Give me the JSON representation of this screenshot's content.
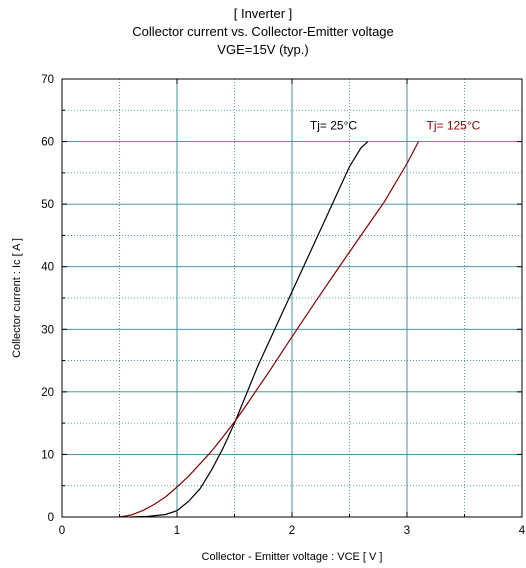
{
  "chart_data": {
    "type": "line",
    "title_lines": [
      "[ Inverter ]",
      "Collector current  vs.  Collector-Emitter voltage",
      "VGE=15V  (typ.)"
    ],
    "xlabel": "Collector - Emitter voltage  :  VCE  [ V ]",
    "ylabel": "Collector current  :  Ic  [ A ]",
    "xlim": [
      0,
      4
    ],
    "ylim": [
      0,
      70
    ],
    "x_ticks": [
      "0",
      "1",
      "2",
      "3",
      "4"
    ],
    "y_ticks": [
      "0",
      "10",
      "20",
      "30",
      "40",
      "50",
      "60",
      "70"
    ],
    "grid": true,
    "series": [
      {
        "name": "Tj= 25°C",
        "color": "#000000",
        "points": [
          [
            0.6,
            0
          ],
          [
            0.75,
            0.1
          ],
          [
            0.9,
            0.4
          ],
          [
            1.0,
            1.0
          ],
          [
            1.1,
            2.5
          ],
          [
            1.2,
            4.5
          ],
          [
            1.3,
            7.5
          ],
          [
            1.4,
            11
          ],
          [
            1.5,
            15
          ],
          [
            1.6,
            19.5
          ],
          [
            1.7,
            24
          ],
          [
            1.8,
            28
          ],
          [
            1.9,
            32
          ],
          [
            2.0,
            36
          ],
          [
            2.1,
            40
          ],
          [
            2.2,
            44
          ],
          [
            2.3,
            48
          ],
          [
            2.4,
            52
          ],
          [
            2.5,
            56
          ],
          [
            2.6,
            59
          ],
          [
            2.66,
            60
          ]
        ]
      },
      {
        "name": "Tj= 125°C",
        "color": "#8b0000",
        "points": [
          [
            0.5,
            0
          ],
          [
            0.6,
            0.3
          ],
          [
            0.7,
            1.0
          ],
          [
            0.8,
            2.0
          ],
          [
            0.9,
            3.2
          ],
          [
            1.0,
            4.8
          ],
          [
            1.1,
            6.5
          ],
          [
            1.2,
            8.5
          ],
          [
            1.3,
            10.5
          ],
          [
            1.4,
            12.8
          ],
          [
            1.5,
            15.2
          ],
          [
            1.6,
            17.8
          ],
          [
            1.7,
            20.5
          ],
          [
            1.8,
            23.2
          ],
          [
            1.9,
            26
          ],
          [
            2.0,
            28.8
          ],
          [
            2.2,
            34.3
          ],
          [
            2.4,
            39.7
          ],
          [
            2.6,
            45
          ],
          [
            2.8,
            50.3
          ],
          [
            3.0,
            56.5
          ],
          [
            3.1,
            60
          ]
        ]
      }
    ]
  }
}
